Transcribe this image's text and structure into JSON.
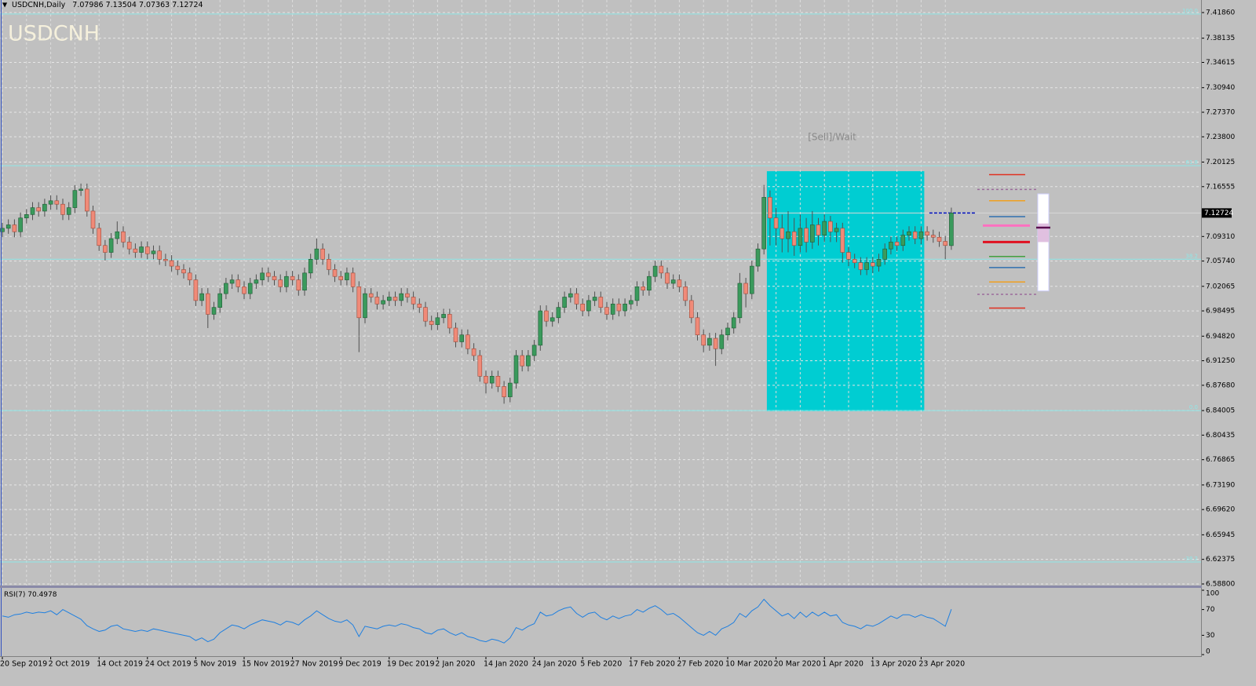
{
  "chart_data": [
    {
      "type": "candlestick",
      "title": "USDCNH,Daily",
      "symbol": "USDCNH",
      "signal": "[Sell]/Wait",
      "categories": [
        "20 Sep 2019",
        null,
        null,
        null,
        null,
        null,
        null,
        null,
        "2 Oct 2019",
        null,
        null,
        null,
        null,
        null,
        null,
        null,
        "14 Oct 2019",
        null,
        null,
        null,
        null,
        null,
        null,
        null,
        "24 Oct 2019",
        null,
        null,
        null,
        null,
        null,
        null,
        null,
        "5 Nov 2019",
        null,
        null,
        null,
        null,
        null,
        null,
        null,
        "15 Nov 2019",
        null,
        null,
        null,
        null,
        null,
        null,
        null,
        "27 Nov 2019",
        null,
        null,
        null,
        null,
        null,
        null,
        null,
        "9 Dec 2019",
        null,
        null,
        null,
        null,
        null,
        null,
        null,
        "19 Dec 2019",
        null,
        null,
        null,
        null,
        null,
        null,
        null,
        "2 Jan 2020",
        null,
        null,
        null,
        null,
        null,
        null,
        null,
        "14 Jan 2020",
        null,
        null,
        null,
        null,
        null,
        null,
        null,
        "24 Jan 2020",
        null,
        null,
        null,
        null,
        null,
        null,
        null,
        "5 Feb 2020",
        null,
        null,
        null,
        null,
        null,
        null,
        null,
        "17 Feb 2020",
        null,
        null,
        null,
        null,
        null,
        null,
        null,
        "27 Feb 2020",
        null,
        null,
        null,
        null,
        null,
        null,
        null,
        "10 Mar 2020",
        null,
        null,
        null,
        null,
        null,
        null,
        null,
        "20 Mar 2020",
        null,
        null,
        null,
        null,
        null,
        null,
        null,
        "1 Apr 2020",
        null,
        null,
        null,
        null,
        null,
        null,
        null,
        "13 Apr 2020",
        null,
        null,
        null,
        null,
        null,
        null,
        null,
        "23 Apr 2020",
        null,
        null,
        null,
        null,
        null
      ],
      "open": [
        7.1,
        7.105,
        7.11,
        7.1,
        7.12,
        7.125,
        7.135,
        7.13,
        7.14,
        7.145,
        7.14,
        7.125,
        7.135,
        7.16,
        7.162,
        7.13,
        7.105,
        7.08,
        7.07,
        7.09,
        7.1,
        7.085,
        7.075,
        7.07,
        7.078,
        7.068,
        7.072,
        7.06,
        7.058,
        7.05,
        7.045,
        7.04,
        7.03,
        7.0,
        7.01,
        6.98,
        6.99,
        7.01,
        7.025,
        7.03,
        7.02,
        7.01,
        7.025,
        7.03,
        7.04,
        7.035,
        7.03,
        7.02,
        7.035,
        7.03,
        7.015,
        7.04,
        7.06,
        7.075,
        7.06,
        7.045,
        7.035,
        7.03,
        7.04,
        7.02,
        6.975,
        7.01,
        7.005,
        6.995,
        7.0,
        7.005,
        7.0,
        7.01,
        7.005,
        6.995,
        6.99,
        6.97,
        6.965,
        6.975,
        6.98,
        6.96,
        6.94,
        6.95,
        6.93,
        6.92,
        6.89,
        6.88,
        6.89,
        6.875,
        6.86,
        6.88,
        6.92,
        6.905,
        6.92,
        6.935,
        6.985,
        6.97,
        6.975,
        6.99,
        7.005,
        7.01,
        6.995,
        6.985,
        7.0,
        7.005,
        6.99,
        6.98,
        6.995,
        6.985,
        6.995,
        7.0,
        7.02,
        7.015,
        7.035,
        7.05,
        7.04,
        7.025,
        7.03,
        7.02,
        7.0,
        6.975,
        6.95,
        6.935,
        6.945,
        6.93,
        6.95,
        6.96,
        6.975,
        7.025,
        7.01,
        7.05,
        7.075,
        7.15,
        7.12,
        7.105,
        7.09,
        7.1,
        7.08,
        7.105,
        7.085,
        7.11,
        7.095,
        7.115,
        7.1,
        7.105,
        7.07,
        7.06,
        7.055,
        7.045,
        7.055,
        7.05,
        7.06,
        7.075,
        7.085,
        7.08,
        7.095,
        7.1,
        7.09,
        7.1,
        7.095,
        7.092,
        7.086,
        7.07986
      ],
      "high": [
        7.113,
        7.118,
        7.118,
        7.128,
        7.133,
        7.143,
        7.143,
        7.148,
        7.153,
        7.153,
        7.148,
        7.143,
        7.168,
        7.17,
        7.17,
        7.138,
        7.113,
        7.088,
        7.098,
        7.115,
        7.108,
        7.093,
        7.083,
        7.086,
        7.086,
        7.08,
        7.08,
        7.068,
        7.066,
        7.058,
        7.053,
        7.048,
        7.038,
        7.018,
        7.018,
        6.998,
        7.018,
        7.033,
        7.038,
        7.038,
        7.028,
        7.033,
        7.038,
        7.048,
        7.048,
        7.043,
        7.038,
        7.043,
        7.043,
        7.038,
        7.048,
        7.068,
        7.09,
        7.083,
        7.068,
        7.053,
        7.043,
        7.048,
        7.048,
        7.028,
        7.018,
        7.018,
        7.013,
        7.008,
        7.013,
        7.013,
        7.018,
        7.018,
        7.013,
        7.003,
        6.998,
        6.978,
        6.983,
        6.988,
        6.988,
        6.968,
        6.958,
        6.958,
        6.938,
        6.928,
        6.898,
        6.898,
        6.898,
        6.883,
        6.888,
        6.928,
        6.928,
        6.928,
        6.943,
        6.993,
        6.993,
        6.983,
        6.998,
        7.013,
        7.018,
        7.018,
        7.003,
        7.008,
        7.013,
        7.013,
        6.998,
        7.003,
        7.003,
        7.003,
        7.008,
        7.028,
        7.028,
        7.043,
        7.058,
        7.058,
        7.048,
        7.038,
        7.038,
        7.028,
        7.008,
        6.983,
        6.958,
        6.953,
        6.953,
        6.958,
        6.968,
        6.983,
        7.04,
        7.033,
        7.058,
        7.083,
        7.168,
        7.16,
        7.135,
        7.125,
        7.13,
        7.12,
        7.125,
        7.12,
        7.13,
        7.12,
        7.125,
        7.123,
        7.113,
        7.113,
        7.078,
        7.068,
        7.063,
        7.063,
        7.063,
        7.068,
        7.083,
        7.093,
        7.093,
        7.103,
        7.108,
        7.108,
        7.108,
        7.108,
        7.103,
        7.1,
        7.094,
        7.13504
      ],
      "low": [
        7.092,
        7.097,
        7.092,
        7.092,
        7.112,
        7.117,
        7.122,
        7.122,
        7.132,
        7.132,
        7.117,
        7.117,
        7.127,
        7.152,
        7.122,
        7.097,
        7.072,
        7.058,
        7.062,
        7.082,
        7.077,
        7.067,
        7.062,
        7.062,
        7.06,
        7.06,
        7.052,
        7.05,
        7.042,
        7.037,
        7.032,
        7.022,
        6.992,
        6.992,
        6.96,
        6.972,
        6.982,
        7.002,
        7.017,
        7.012,
        7.002,
        7.002,
        7.017,
        7.022,
        7.027,
        7.022,
        7.012,
        7.012,
        7.022,
        7.007,
        7.007,
        7.032,
        7.052,
        7.052,
        7.037,
        7.027,
        7.022,
        7.022,
        7.012,
        6.925,
        6.967,
        6.997,
        6.987,
        6.987,
        6.992,
        6.992,
        6.992,
        6.997,
        6.987,
        6.982,
        6.962,
        6.957,
        6.957,
        6.967,
        6.952,
        6.932,
        6.932,
        6.922,
        6.912,
        6.882,
        6.865,
        6.872,
        6.867,
        6.85,
        6.852,
        6.872,
        6.897,
        6.897,
        6.912,
        6.927,
        6.962,
        6.962,
        6.967,
        6.982,
        6.997,
        6.987,
        6.977,
        6.977,
        6.992,
        6.982,
        6.972,
        6.972,
        6.977,
        6.977,
        6.987,
        6.992,
        7.007,
        7.007,
        7.027,
        7.032,
        7.017,
        7.017,
        7.012,
        6.992,
        6.967,
        6.942,
        6.925,
        6.927,
        6.905,
        6.922,
        6.942,
        6.952,
        6.967,
        6.99,
        7.002,
        7.042,
        7.067,
        7.08,
        7.08,
        7.07,
        7.07,
        7.065,
        7.07,
        7.07,
        7.075,
        7.08,
        7.085,
        7.085,
        7.085,
        7.055,
        7.05,
        7.047,
        7.037,
        7.037,
        7.04,
        7.042,
        7.052,
        7.067,
        7.072,
        7.072,
        7.087,
        7.082,
        7.082,
        7.087,
        7.084,
        7.078,
        7.06,
        7.07363
      ],
      "close": [
        7.105,
        7.11,
        7.1,
        7.12,
        7.125,
        7.135,
        7.13,
        7.14,
        7.145,
        7.14,
        7.125,
        7.135,
        7.16,
        7.162,
        7.13,
        7.105,
        7.08,
        7.07,
        7.09,
        7.1,
        7.085,
        7.075,
        7.07,
        7.078,
        7.068,
        7.072,
        7.06,
        7.058,
        7.05,
        7.045,
        7.04,
        7.03,
        7.0,
        7.01,
        6.98,
        6.99,
        7.01,
        7.025,
        7.03,
        7.02,
        7.01,
        7.025,
        7.03,
        7.04,
        7.035,
        7.03,
        7.02,
        7.035,
        7.03,
        7.015,
        7.04,
        7.06,
        7.075,
        7.06,
        7.045,
        7.035,
        7.03,
        7.04,
        7.02,
        6.975,
        7.01,
        7.005,
        6.995,
        7.0,
        7.005,
        7.0,
        7.01,
        7.005,
        6.995,
        6.99,
        6.97,
        6.965,
        6.975,
        6.98,
        6.96,
        6.94,
        6.95,
        6.93,
        6.92,
        6.89,
        6.88,
        6.89,
        6.875,
        6.86,
        6.88,
        6.92,
        6.905,
        6.92,
        6.935,
        6.985,
        6.97,
        6.975,
        6.99,
        7.005,
        7.01,
        6.995,
        6.985,
        7.0,
        7.005,
        6.99,
        6.98,
        6.995,
        6.985,
        6.995,
        7.0,
        7.02,
        7.015,
        7.035,
        7.05,
        7.04,
        7.025,
        7.03,
        7.02,
        7.0,
        6.975,
        6.95,
        6.935,
        6.945,
        6.93,
        6.95,
        6.96,
        6.975,
        7.025,
        7.01,
        7.05,
        7.075,
        7.15,
        7.12,
        7.105,
        7.09,
        7.1,
        7.08,
        7.105,
        7.085,
        7.11,
        7.095,
        7.115,
        7.1,
        7.105,
        7.07,
        7.06,
        7.055,
        7.045,
        7.055,
        7.05,
        7.06,
        7.075,
        7.085,
        7.08,
        7.095,
        7.1,
        7.09,
        7.1,
        7.095,
        7.092,
        7.086,
        7.08,
        7.12724
      ],
      "up_color": "#3a9a5c",
      "down_color": "#f08a78",
      "ylim": [
        6.588,
        7.4186
      ],
      "yticks": [
        {
          "value": 7.4186,
          "label": "7.41860"
        },
        7.38135,
        7.34615,
        {
          "value": 7.3094,
          "label": "7.30940"
        },
        {
          "value": 7.2737,
          "label": "7.27370"
        },
        {
          "value": 7.238,
          "label": "7.23800"
        },
        7.20125,
        7.16555,
        {
          "value": 7.0931,
          "label": "7.09310"
        },
        {
          "value": 7.0574,
          "label": "7.05740"
        },
        7.02065,
        6.98495,
        {
          "value": 6.9482,
          "label": "6.94820"
        },
        {
          "value": 6.9125,
          "label": "6.91250"
        },
        {
          "value": 6.8768,
          "label": "6.87680"
        },
        6.84005,
        6.80435,
        6.76865,
        {
          "value": 6.7319,
          "label": "6.73190"
        },
        {
          "value": 6.6962,
          "label": "6.69620"
        },
        6.65945,
        6.62375,
        {
          "value": 6.588,
          "label": "6.58800"
        }
      ],
      "grid": true,
      "fib_levels": [
        {
          "value": 7.4164,
          "label": "100.0"
        },
        {
          "value": 7.196,
          "label": "61.8"
        },
        {
          "value": 7.06,
          "label": "38.2"
        },
        {
          "value": 6.84,
          "label": "0.0"
        },
        {
          "value": 6.62,
          "label": "-38.2"
        }
      ],
      "fib_color": "#8ee8e8",
      "zone": {
        "from": 127,
        "to": 152,
        "top": 7.188,
        "bottom": 6.839,
        "color": "#00cdd2"
      },
      "side_levels": [
        {
          "value": 7.183,
          "color": "#e03020",
          "style": "solid"
        },
        {
          "value": 7.1615,
          "color": "#9a6a9a",
          "style": "dashed"
        },
        {
          "value": 7.145,
          "color": "#f0a020",
          "style": "solid"
        },
        {
          "value": 7.122,
          "color": "#3070b0",
          "style": "solid"
        },
        {
          "value": 7.109,
          "color": "#ff70c0",
          "style": "thick"
        },
        {
          "value": 7.085,
          "color": "#e01020",
          "style": "thick"
        },
        {
          "value": 7.064,
          "color": "#40a040",
          "style": "solid"
        },
        {
          "value": 7.048,
          "color": "#3070b0",
          "style": "solid"
        },
        {
          "value": 7.027,
          "color": "#f0a020",
          "style": "solid"
        },
        {
          "value": 7.009,
          "color": "#9a6a9a",
          "style": "dashed"
        },
        {
          "value": 6.989,
          "color": "#e03020",
          "style": "solid"
        }
      ],
      "side_box": {
        "top": 7.155,
        "bottom": 7.014,
        "inner_top": 7.112,
        "inner_bottom": 7.085,
        "marker": 7.106
      }
    },
    {
      "type": "line",
      "title": "RSI(7)",
      "color": "#1e7fe0",
      "values": [
        60,
        58,
        62,
        63,
        66,
        64,
        66,
        65,
        68,
        62,
        70,
        65,
        60,
        55,
        45,
        40,
        36,
        38,
        44,
        46,
        40,
        38,
        36,
        38,
        36,
        40,
        38,
        36,
        34,
        32,
        30,
        28,
        22,
        26,
        20,
        24,
        34,
        40,
        46,
        44,
        40,
        46,
        50,
        54,
        52,
        50,
        46,
        52,
        50,
        46,
        54,
        60,
        68,
        62,
        56,
        52,
        50,
        54,
        46,
        28,
        44,
        42,
        40,
        44,
        46,
        44,
        48,
        46,
        42,
        40,
        34,
        32,
        38,
        40,
        34,
        30,
        34,
        28,
        26,
        22,
        20,
        24,
        22,
        18,
        26,
        42,
        38,
        44,
        48,
        66,
        60,
        62,
        68,
        72,
        74,
        64,
        58,
        64,
        66,
        58,
        54,
        60,
        56,
        60,
        62,
        70,
        66,
        72,
        76,
        70,
        62,
        64,
        58,
        50,
        42,
        34,
        30,
        36,
        30,
        40,
        44,
        50,
        64,
        58,
        68,
        74,
        86,
        76,
        68,
        60,
        64,
        56,
        66,
        58,
        66,
        60,
        66,
        60,
        62,
        50,
        46,
        44,
        40,
        46,
        44,
        48,
        54,
        60,
        56,
        62,
        62,
        58,
        62,
        58,
        56,
        50,
        44,
        70.4978
      ],
      "ylim": [
        0,
        100
      ],
      "yticks": [
        100,
        70,
        30,
        0
      ]
    }
  ]
}
